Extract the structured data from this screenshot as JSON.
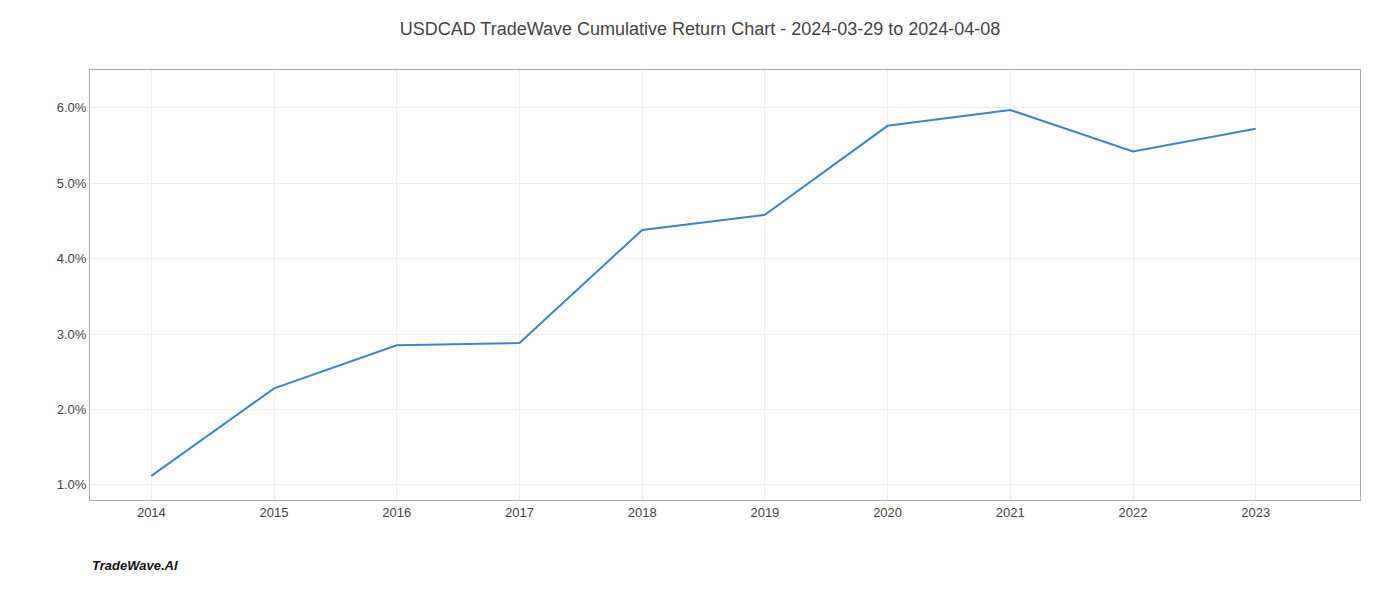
{
  "chart_data": {
    "type": "line",
    "title": "USDCAD TradeWave Cumulative Return Chart - 2024-03-29 to 2024-04-08",
    "annotations": [
      "TradeWave.AI"
    ],
    "x": [
      2014,
      2015,
      2016,
      2017,
      2018,
      2019,
      2020,
      2021,
      2022,
      2023
    ],
    "values": [
      1.12,
      2.28,
      2.85,
      2.88,
      4.38,
      4.58,
      5.76,
      5.97,
      5.42,
      5.72
    ],
    "color": "#3a86c8",
    "xlim": [
      2013.5,
      2023.85
    ],
    "xticks": [
      2014,
      2015,
      2016,
      2017,
      2018,
      2019,
      2020,
      2021,
      2022,
      2023
    ],
    "ylim": [
      0.8,
      6.5
    ],
    "yticks": [
      {
        "value": 1.0,
        "label": "1.0%"
      },
      {
        "value": 2.0,
        "label": "2.0%"
      },
      {
        "value": 3.0,
        "label": "3.0%"
      },
      {
        "value": 4.0,
        "label": "4.0%"
      },
      {
        "value": 5.0,
        "label": "5.0%"
      },
      {
        "value": 6.0,
        "label": "6.0%"
      }
    ],
    "grid": true
  }
}
